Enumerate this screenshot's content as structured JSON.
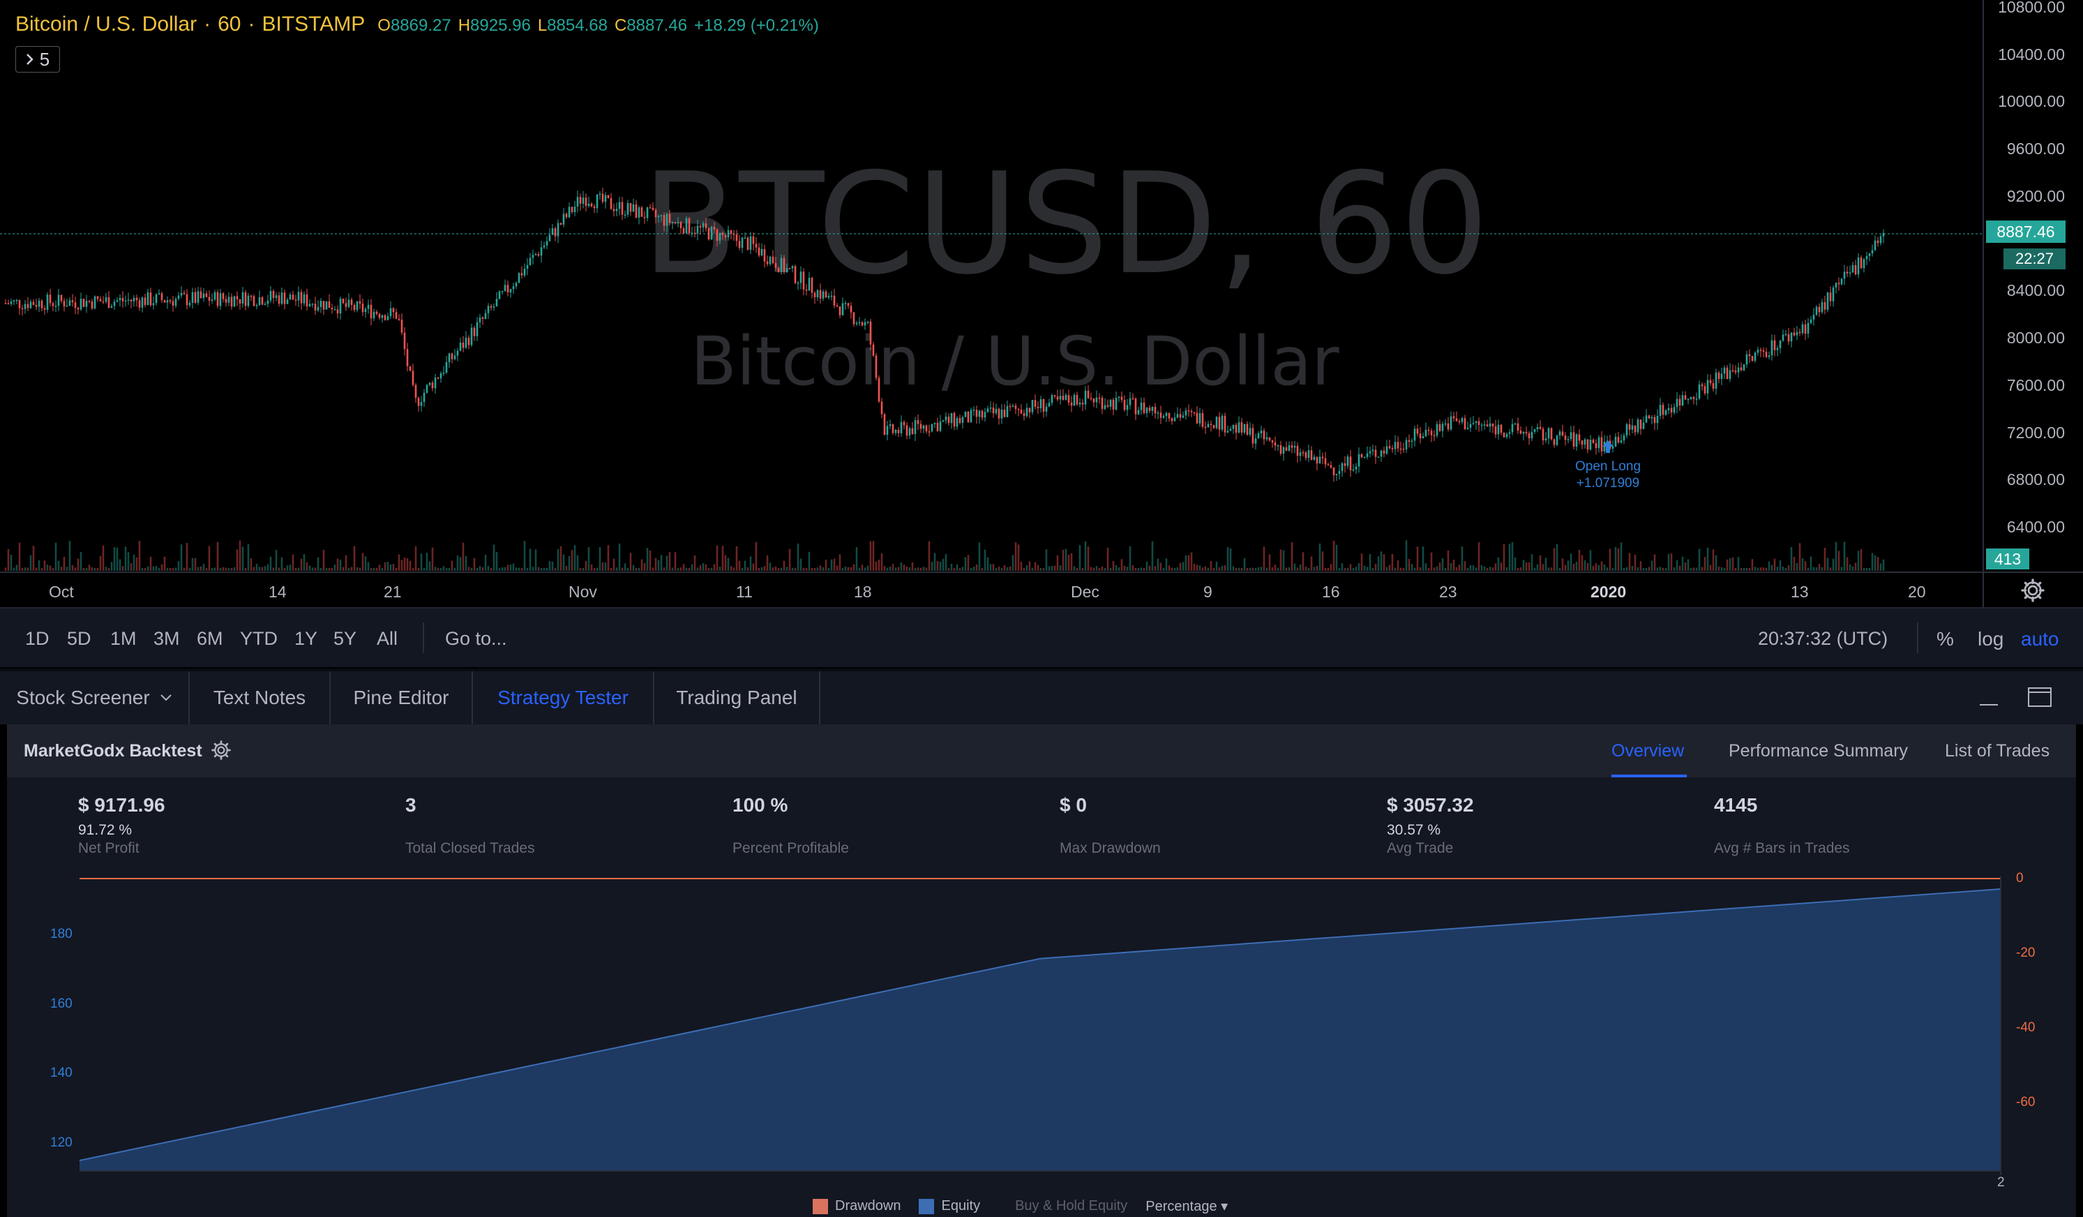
{
  "symbol": {
    "title": "Bitcoin / U.S. Dollar",
    "sep1": "·",
    "interval": "60",
    "sep2": "·",
    "exchange": "BITSTAMP",
    "open_label": "O",
    "open": "8869.27",
    "high_label": "H",
    "high": "8925.96",
    "low_label": "L",
    "low": "8854.68",
    "close_label": "C",
    "close": "8887.46",
    "change": "+18.29 (+0.21%)"
  },
  "indicators_toggle": {
    "count": "5"
  },
  "watermark": {
    "line1": "BTCUSD, 60",
    "line2": "Bitcoin / U.S. Dollar"
  },
  "price_axis": [
    "10800.00",
    "10400.00",
    "10000.00",
    "9600.00",
    "9200.00",
    "8400.00",
    "8000.00",
    "7600.00",
    "7200.00",
    "6800.00",
    "6400.00"
  ],
  "date_axis": [
    "Oct",
    "14",
    "21",
    "Nov",
    "11",
    "18",
    "Dec",
    "9",
    "16",
    "23",
    "2020",
    "13",
    "20"
  ],
  "last_price_tag": "8887.46",
  "countdown_tag": "22:27",
  "volume_tag": "413",
  "signal": {
    "label": "Open Long",
    "value": "+1.071909"
  },
  "colors": {
    "up": "#26a69a",
    "down": "#ef5350",
    "accent": "#2962ff",
    "equity": "#1e3a63",
    "drawdown": "#ef6c43"
  },
  "chart_data": {
    "type": "candlestick",
    "title": "",
    "x": [
      "Oct",
      "14",
      "21",
      "Nov",
      "11",
      "18",
      "Dec",
      "9",
      "16",
      "23",
      "2020",
      "13",
      "20"
    ],
    "ylim": [
      6200,
      10800
    ],
    "grid": false,
    "approx_close_path": [
      {
        "x": "Oct",
        "y": 8300
      },
      {
        "x": "14",
        "y": 8350
      },
      {
        "x": "21",
        "y": 8200
      },
      {
        "x": "21",
        "y": 7450
      },
      {
        "x": "Nov",
        "y": 9200
      },
      {
        "x": "11",
        "y": 8800
      },
      {
        "x": "18",
        "y": 8100
      },
      {
        "x": "18",
        "y": 7200
      },
      {
        "x": "Dec",
        "y": 7500
      },
      {
        "x": "9",
        "y": 7300
      },
      {
        "x": "16",
        "y": 6900
      },
      {
        "x": "23",
        "y": 7300
      },
      {
        "x": "2020",
        "y": 7100
      },
      {
        "x": "13",
        "y": 8100
      },
      {
        "x": "20",
        "y": 8887.46
      }
    ]
  },
  "timebar": {
    "ranges": [
      "1D",
      "5D",
      "1M",
      "3M",
      "6M",
      "YTD",
      "1Y",
      "5Y",
      "All"
    ],
    "goto": "Go to...",
    "utc": "20:37:32 (UTC)",
    "percent": "%",
    "log": "log",
    "auto": "auto"
  },
  "panel_tabs": [
    "Stock Screener",
    "Text Notes",
    "Pine Editor",
    "Strategy Tester",
    "Trading Panel"
  ],
  "strategy": {
    "name": "MarketGodx Backtest",
    "tabs": [
      "Overview",
      "Performance Summary",
      "List of Trades"
    ],
    "stats": [
      {
        "value": "$ 9171.96",
        "sub": "91.72 %",
        "label": "Net Profit"
      },
      {
        "value": "3",
        "sub": "",
        "label": "Total Closed Trades"
      },
      {
        "value": "100 %",
        "sub": "",
        "label": "Percent Profitable"
      },
      {
        "value": "$ 0",
        "sub": "",
        "label": "Max Drawdown"
      },
      {
        "value": "$ 3057.32",
        "sub": "30.57 %",
        "label": "Avg Trade"
      },
      {
        "value": "4145",
        "sub": "",
        "label": "Avg # Bars in Trades"
      }
    ]
  },
  "equity_chart": {
    "left_ticks": [
      "180",
      "160",
      "140",
      "120"
    ],
    "right_ticks": [
      "0",
      "-20",
      "-40",
      "-60"
    ],
    "x_end_label": "2",
    "legend": [
      "Drawdown",
      "Equity",
      "Buy & Hold Equity",
      "Percentage ▾"
    ],
    "chart_data": {
      "type": "area",
      "series": [
        {
          "name": "Equity",
          "x": [
            0,
            1,
            2
          ],
          "values": [
            115,
            173,
            193
          ]
        },
        {
          "name": "Drawdown",
          "x": [
            0,
            1,
            2
          ],
          "values": [
            0,
            0,
            0
          ]
        }
      ],
      "ylim_left": [
        112,
        196
      ],
      "ylim_right": [
        -80,
        0
      ]
    }
  }
}
